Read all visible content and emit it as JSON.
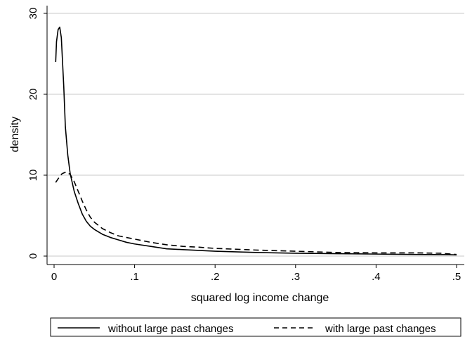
{
  "chart_data": {
    "type": "line",
    "title": "",
    "xlabel": "squared log income change",
    "ylabel": "density",
    "xlim": [
      0,
      0.5
    ],
    "ylim": [
      0,
      30
    ],
    "x_ticks": [
      0,
      0.1,
      0.2,
      0.3,
      0.4,
      0.5
    ],
    "x_tick_labels": [
      "0",
      ".1",
      ".2",
      ".3",
      ".4",
      ".5"
    ],
    "y_ticks": [
      0,
      10,
      20,
      30
    ],
    "y_tick_labels": [
      "0",
      "10",
      "20",
      "30"
    ],
    "grid": "horizontal",
    "legend_position": "bottom",
    "series": [
      {
        "name": "without large past changes",
        "style": "solid",
        "color": "#000000",
        "points": [
          [
            0.002,
            24.0
          ],
          [
            0.003,
            26.5
          ],
          [
            0.005,
            28.0
          ],
          [
            0.007,
            28.3
          ],
          [
            0.009,
            27.0
          ],
          [
            0.012,
            21.0
          ],
          [
            0.014,
            16.0
          ],
          [
            0.017,
            12.5
          ],
          [
            0.02,
            10.2
          ],
          [
            0.025,
            8.0
          ],
          [
            0.03,
            6.5
          ],
          [
            0.035,
            5.2
          ],
          [
            0.04,
            4.3
          ],
          [
            0.045,
            3.7
          ],
          [
            0.05,
            3.3
          ],
          [
            0.06,
            2.7
          ],
          [
            0.07,
            2.3
          ],
          [
            0.08,
            2.0
          ],
          [
            0.09,
            1.7
          ],
          [
            0.1,
            1.5
          ],
          [
            0.12,
            1.2
          ],
          [
            0.14,
            0.9
          ],
          [
            0.16,
            0.8
          ],
          [
            0.18,
            0.7
          ],
          [
            0.2,
            0.6
          ],
          [
            0.25,
            0.45
          ],
          [
            0.3,
            0.35
          ],
          [
            0.35,
            0.3
          ],
          [
            0.4,
            0.25
          ],
          [
            0.45,
            0.2
          ],
          [
            0.49,
            0.18
          ],
          [
            0.5,
            0.15
          ]
        ]
      },
      {
        "name": "with large past changes",
        "style": "dashed",
        "color": "#000000",
        "points": [
          [
            0.002,
            9.1
          ],
          [
            0.006,
            9.7
          ],
          [
            0.01,
            10.2
          ],
          [
            0.015,
            10.4
          ],
          [
            0.02,
            10.1
          ],
          [
            0.025,
            9.2
          ],
          [
            0.03,
            8.0
          ],
          [
            0.035,
            6.8
          ],
          [
            0.04,
            5.7
          ],
          [
            0.045,
            4.8
          ],
          [
            0.05,
            4.2
          ],
          [
            0.06,
            3.4
          ],
          [
            0.07,
            2.9
          ],
          [
            0.08,
            2.5
          ],
          [
            0.09,
            2.3
          ],
          [
            0.1,
            2.1
          ],
          [
            0.12,
            1.7
          ],
          [
            0.14,
            1.4
          ],
          [
            0.16,
            1.2
          ],
          [
            0.18,
            1.1
          ],
          [
            0.2,
            0.95
          ],
          [
            0.25,
            0.75
          ],
          [
            0.3,
            0.6
          ],
          [
            0.35,
            0.45
          ],
          [
            0.4,
            0.4
          ],
          [
            0.45,
            0.4
          ],
          [
            0.48,
            0.35
          ],
          [
            0.5,
            0.2
          ]
        ]
      }
    ]
  }
}
